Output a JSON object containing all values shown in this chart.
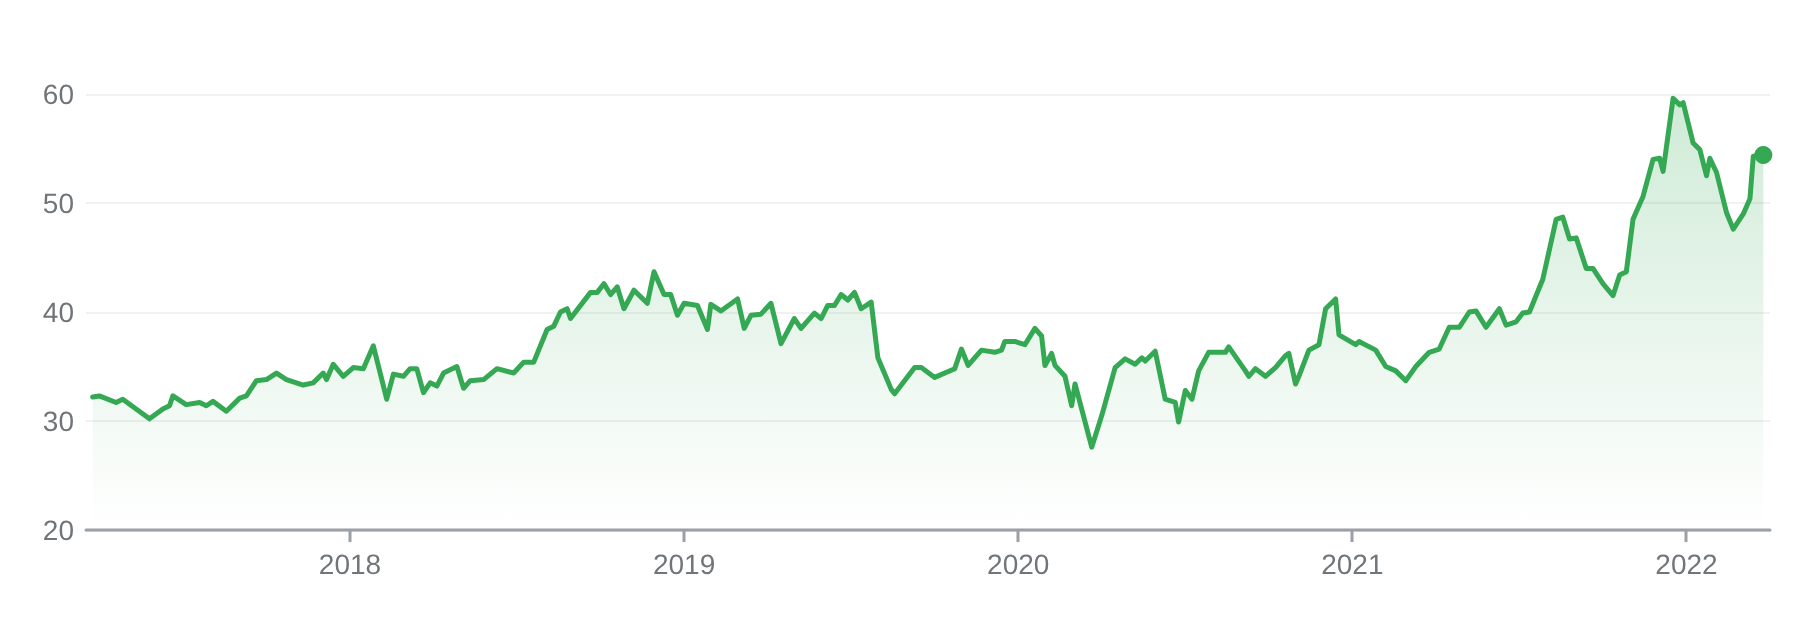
{
  "chart_data": {
    "type": "area",
    "color": "#34a853",
    "x": [
      2017.23,
      2017.25,
      2017.3,
      2017.32,
      2017.4,
      2017.44,
      2017.46,
      2017.47,
      2017.51,
      2017.55,
      2017.57,
      2017.59,
      2017.63,
      2017.67,
      2017.69,
      2017.72,
      2017.75,
      2017.78,
      2017.81,
      2017.86,
      2017.89,
      2017.92,
      2017.93,
      2017.95,
      2017.98,
      2018.01,
      2018.04,
      2018.07,
      2018.11,
      2018.13,
      2018.16,
      2018.18,
      2018.2,
      2018.22,
      2018.24,
      2018.26,
      2018.28,
      2018.32,
      2018.34,
      2018.36,
      2018.4,
      2018.44,
      2018.49,
      2018.52,
      2018.55,
      2018.59,
      2018.61,
      2018.63,
      2018.65,
      2018.66,
      2018.72,
      2018.74,
      2018.76,
      2018.78,
      2018.8,
      2018.82,
      2018.85,
      2018.89,
      2018.91,
      2018.94,
      2018.96,
      2018.98,
      2019.0,
      2019.04,
      2019.07,
      2019.08,
      2019.11,
      2019.16,
      2019.18,
      2019.2,
      2019.23,
      2019.26,
      2019.29,
      2019.33,
      2019.35,
      2019.39,
      2019.41,
      2019.43,
      2019.45,
      2019.47,
      2019.49,
      2019.51,
      2019.53,
      2019.56,
      2019.58,
      2019.62,
      2019.63,
      2019.69,
      2019.71,
      2019.75,
      2019.81,
      2019.83,
      2019.85,
      2019.89,
      2019.93,
      2019.95,
      2019.96,
      2019.99,
      2020.02,
      2020.05,
      2020.07,
      2020.08,
      2020.1,
      2020.11,
      2020.14,
      2020.16,
      2020.17,
      2020.22,
      2020.25,
      2020.29,
      2020.32,
      2020.35,
      2020.37,
      2020.38,
      2020.41,
      2020.44,
      2020.47,
      2020.48,
      2020.5,
      2020.52,
      2020.54,
      2020.57,
      2020.62,
      2020.63,
      2020.68,
      2020.69,
      2020.71,
      2020.74,
      2020.77,
      2020.8,
      2020.81,
      2020.83,
      2020.84,
      2020.87,
      2020.9,
      2020.92,
      2020.95,
      2020.96,
      2021.01,
      2021.02,
      2021.07,
      2021.1,
      2021.13,
      2021.16,
      2021.19,
      2021.23,
      2021.26,
      2021.29,
      2021.32,
      2021.35,
      2021.37,
      2021.4,
      2021.44,
      2021.46,
      2021.49,
      2021.51,
      2021.53,
      2021.57,
      2021.61,
      2021.63,
      2021.65,
      2021.67,
      2021.7,
      2021.72,
      2021.75,
      2021.78,
      2021.8,
      2021.82,
      2021.84,
      2021.87,
      2021.9,
      2021.92,
      2021.93,
      2021.96,
      2021.98,
      2021.99,
      2022.02,
      2022.04,
      2022.06,
      2022.07,
      2022.09,
      2022.12,
      2022.14,
      2022.17,
      2022.19,
      2022.2,
      2022.23
    ],
    "values": [
      32.2,
      32.3,
      31.7,
      32.0,
      30.2,
      31.1,
      31.4,
      32.3,
      31.5,
      31.7,
      31.4,
      31.8,
      30.9,
      32.1,
      32.3,
      33.7,
      33.8,
      34.4,
      33.8,
      33.3,
      33.5,
      34.4,
      33.8,
      35.2,
      34.1,
      34.9,
      34.8,
      36.9,
      32.0,
      34.3,
      34.1,
      34.8,
      34.8,
      32.6,
      33.5,
      33.2,
      34.4,
      35.0,
      33.0,
      33.7,
      33.8,
      34.8,
      34.4,
      35.4,
      35.4,
      38.4,
      38.7,
      40.0,
      40.3,
      39.4,
      41.8,
      41.8,
      42.6,
      41.6,
      42.3,
      40.3,
      42.0,
      40.8,
      43.7,
      41.6,
      41.6,
      39.7,
      40.8,
      40.6,
      38.4,
      40.7,
      40.1,
      41.2,
      38.5,
      39.7,
      39.8,
      40.8,
      37.1,
      39.4,
      38.5,
      39.9,
      39.4,
      40.6,
      40.6,
      41.6,
      41.1,
      41.8,
      40.3,
      40.9,
      35.8,
      32.9,
      32.5,
      34.9,
      34.9,
      34.0,
      34.8,
      36.6,
      35.1,
      36.5,
      36.3,
      36.5,
      37.3,
      37.3,
      37.0,
      38.5,
      37.8,
      35.1,
      36.2,
      35.1,
      34.1,
      31.4,
      33.4,
      27.6,
      30.5,
      34.9,
      35.7,
      35.2,
      35.8,
      35.5,
      36.4,
      32.0,
      31.7,
      29.9,
      32.8,
      32.0,
      34.6,
      36.3,
      36.3,
      36.8,
      34.6,
      34.1,
      34.8,
      34.1,
      34.9,
      36.0,
      36.2,
      33.4,
      34.1,
      36.5,
      37.0,
      40.3,
      41.2,
      37.9,
      37.0,
      37.3,
      36.5,
      35.0,
      34.6,
      33.7,
      35.0,
      36.3,
      36.6,
      38.6,
      38.6,
      40.0,
      40.1,
      38.6,
      40.3,
      38.8,
      39.1,
      39.9,
      40.0,
      43.0,
      48.5,
      48.7,
      46.7,
      46.8,
      44.0,
      44.0,
      42.6,
      41.5,
      43.4,
      43.7,
      48.5,
      50.6,
      54.0,
      54.1,
      52.9,
      59.6,
      59.0,
      59.2,
      55.5,
      54.9,
      52.5,
      54.1,
      52.8,
      49.1,
      47.6,
      49.0,
      50.4,
      54.3,
      54.4
    ],
    "xlim": [
      2017.21,
      2022.25
    ],
    "xticks": [
      2018,
      2019,
      2020,
      2021,
      2022
    ],
    "ylim": [
      20,
      60
    ],
    "yticks": [
      20,
      30,
      40,
      50,
      60
    ],
    "grid": "y",
    "marker": "none",
    "line_style": "solid"
  }
}
